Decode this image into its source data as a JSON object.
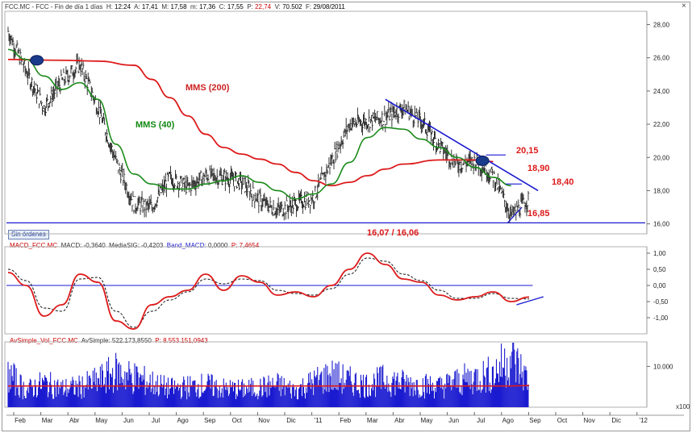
{
  "header": {
    "symbol_info": "FCC.MC - FCC - Fin de día 1 días",
    "h_label": "H:",
    "h_value": "12:24",
    "a_label": "A:",
    "a_value": "17,41",
    "m_label": "M:",
    "m_value": "17,58",
    "mn_label": "m:",
    "mn_value": "17,36",
    "c_label": "C:",
    "c_value": "17,55",
    "p_label": "P:",
    "p_value": "22,74",
    "v_label": "V:",
    "v_value": "70.502",
    "f_label": "F:",
    "f_value": "29/08/2011"
  },
  "badge_label": "Sin órdenes",
  "macd_header": {
    "name": "MACD_FCC.MC",
    "macd_label": "MACD:",
    "macd_value": "-0,3640",
    "sig_label": "MediaSIG:",
    "sig_value": "-0,4203",
    "band_label": "Band_MACD:",
    "band_value": "0,0000",
    "p_label": "P:",
    "p_value": "7,4654"
  },
  "vol_header": {
    "name": "AvSimple_Vol_FCC.MC",
    "av_label": "AvSimple:",
    "av_value": "522.173,8550",
    "p_label": "P:",
    "p_value": "8.553.151,0943"
  },
  "vol_corner": "x100",
  "colors": {
    "price": "#222222",
    "mms200": "#dd1a1a",
    "mms40": "#1a8a1a",
    "trend": "#1a1ad0",
    "macd": "#dd1a1a",
    "volume": "#1a1ad0",
    "header_red": "#cc0000"
  },
  "chart_data": [
    {
      "type": "line",
      "panel": "price",
      "y_ticks": [
        "28,00",
        "26,00",
        "24,00",
        "22,00",
        "20,00",
        "18,00",
        "16,00"
      ],
      "ylim": [
        15.4,
        28.8
      ],
      "x_tick_labels": [
        "Feb",
        "Mar",
        "Abr",
        "May",
        "Jun",
        "Jul",
        "Ago",
        "Sep",
        "Oct",
        "Nov",
        "Dic",
        "'11",
        "Feb",
        "Mar",
        "Abr",
        "May",
        "Jun",
        "Jul",
        "Ago",
        "Sep",
        "Oct",
        "Nov",
        "Dic",
        "'12"
      ],
      "series": [
        {
          "name": "MMS (200)",
          "style": "red smooth line",
          "points": [
            [
              0,
              25.9
            ],
            [
              3,
              25.85
            ],
            [
              5,
              25.8
            ],
            [
              7,
              25.55
            ],
            [
              8,
              24.7
            ],
            [
              9,
              23.6
            ],
            [
              10,
              22.5
            ],
            [
              11,
              21.4
            ],
            [
              12,
              20.6
            ],
            [
              13,
              20.2
            ],
            [
              14,
              19.9
            ],
            [
              15,
              19.6
            ],
            [
              16,
              19.1
            ],
            [
              17,
              18.6
            ],
            [
              18,
              18.3
            ],
            [
              19,
              18.5
            ],
            [
              20,
              18.9
            ],
            [
              21,
              19.3
            ],
            [
              22,
              19.6
            ],
            [
              24,
              19.85
            ],
            [
              26,
              19.85
            ],
            [
              27,
              19.75
            ]
          ]
        },
        {
          "name": "MMS (40)",
          "style": "green smooth line",
          "points": [
            [
              0,
              26.5
            ],
            [
              1,
              25.9
            ],
            [
              2,
              24.9
            ],
            [
              3,
              24.1
            ],
            [
              4,
              24.5
            ],
            [
              5,
              23.5
            ],
            [
              6,
              20.8
            ],
            [
              7,
              19.0
            ],
            [
              8,
              18.4
            ],
            [
              9,
              18.1
            ],
            [
              10,
              18.1
            ],
            [
              11,
              18.4
            ],
            [
              12,
              18.6
            ],
            [
              13,
              18.9
            ],
            [
              14,
              18.5
            ],
            [
              15,
              18.0
            ],
            [
              16,
              17.5
            ],
            [
              17,
              17.8
            ],
            [
              18,
              18.4
            ],
            [
              19,
              19.7
            ],
            [
              20,
              21.2
            ],
            [
              21,
              21.8
            ],
            [
              22,
              21.7
            ],
            [
              23,
              21.1
            ],
            [
              24,
              20.6
            ],
            [
              25,
              20.0
            ],
            [
              26,
              19.4
            ],
            [
              27,
              18.8
            ],
            [
              28,
              18.3
            ]
          ]
        },
        {
          "name": "Price",
          "style": "black OHLC bars",
          "points": [
            [
              0,
              27.6
            ],
            [
              1,
              25.2
            ],
            [
              2,
              23.0
            ],
            [
              3,
              24.6
            ],
            [
              4,
              25.6
            ],
            [
              5,
              23.0
            ],
            [
              6,
              19.8
            ],
            [
              7,
              17.2
            ],
            [
              8,
              17.0
            ],
            [
              9,
              18.8
            ],
            [
              10,
              18.2
            ],
            [
              11,
              18.9
            ],
            [
              12,
              18.8
            ],
            [
              13,
              18.5
            ],
            [
              14,
              17.4
            ],
            [
              15,
              16.8
            ],
            [
              16,
              17.2
            ],
            [
              17,
              17.6
            ],
            [
              18,
              19.8
            ],
            [
              19,
              22.0
            ],
            [
              20,
              22.2
            ],
            [
              21,
              22.4
            ],
            [
              22,
              23.0
            ],
            [
              23,
              22.2
            ],
            [
              24,
              20.7
            ],
            [
              25,
              19.6
            ],
            [
              26,
              19.8
            ],
            [
              27,
              18.9
            ],
            [
              28,
              16.5
            ],
            [
              29,
              17.5
            ]
          ]
        }
      ],
      "annotations": [
        {
          "text": "MMS (200)",
          "color": "#cc2222"
        },
        {
          "text": "MMS (40)",
          "color": "#118811"
        },
        {
          "text": "20,15",
          "color": "#dd1a1a",
          "value": 20.15
        },
        {
          "text": "18,90",
          "color": "#dd1a1a",
          "value": 18.9
        },
        {
          "text": "18,40",
          "color": "#dd1a1a",
          "value": 18.4
        },
        {
          "text": "16,85",
          "color": "#dd1a1a",
          "value": 16.85
        },
        {
          "text": "16,07 / 16,06",
          "color": "#dd1a1a",
          "value": 16.06
        }
      ],
      "support_level": 16.06,
      "downtrend_line": [
        [
          21.0,
          23.5
        ],
        [
          29.5,
          18.0
        ]
      ]
    },
    {
      "type": "line",
      "panel": "macd",
      "y_ticks": [
        "1,00",
        "0,50",
        "0,00",
        "-0,50",
        "-1,00"
      ],
      "ylim": [
        -1.5,
        1.2
      ],
      "zero_line": 0.0,
      "series": [
        {
          "name": "MACD",
          "style": "red solid",
          "points": [
            [
              0,
              0.4
            ],
            [
              1,
              0.0
            ],
            [
              2,
              -0.95
            ],
            [
              3,
              -0.6
            ],
            [
              4,
              0.35
            ],
            [
              5,
              0.1
            ],
            [
              6,
              -1.1
            ],
            [
              7,
              -1.35
            ],
            [
              8,
              -0.6
            ],
            [
              9,
              -0.35
            ],
            [
              10,
              -0.15
            ],
            [
              11,
              0.35
            ],
            [
              12,
              -0.15
            ],
            [
              13,
              0.3
            ],
            [
              14,
              0.1
            ],
            [
              15,
              -0.3
            ],
            [
              16,
              -0.2
            ],
            [
              17,
              -0.35
            ],
            [
              18,
              0.0
            ],
            [
              19,
              0.5
            ],
            [
              20,
              1.0
            ],
            [
              21,
              0.65
            ],
            [
              22,
              0.2
            ],
            [
              23,
              0.1
            ],
            [
              24,
              -0.3
            ],
            [
              25,
              -0.45
            ],
            [
              26,
              -0.35
            ],
            [
              27,
              -0.2
            ],
            [
              28,
              -0.5
            ],
            [
              29,
              -0.36
            ]
          ]
        },
        {
          "name": "MediaSIG",
          "style": "black dashed",
          "points": [
            [
              0,
              0.5
            ],
            [
              1,
              0.15
            ],
            [
              2,
              -0.7
            ],
            [
              3,
              -0.8
            ],
            [
              4,
              0.2
            ],
            [
              5,
              0.25
            ],
            [
              6,
              -0.8
            ],
            [
              7,
              -1.3
            ],
            [
              8,
              -0.8
            ],
            [
              9,
              -0.45
            ],
            [
              10,
              -0.2
            ],
            [
              11,
              0.2
            ],
            [
              12,
              0.05
            ],
            [
              13,
              0.2
            ],
            [
              14,
              0.15
            ],
            [
              15,
              -0.15
            ],
            [
              16,
              -0.25
            ],
            [
              17,
              -0.3
            ],
            [
              18,
              -0.1
            ],
            [
              19,
              0.35
            ],
            [
              20,
              0.85
            ],
            [
              21,
              0.75
            ],
            [
              22,
              0.35
            ],
            [
              23,
              0.15
            ],
            [
              24,
              -0.15
            ],
            [
              25,
              -0.4
            ],
            [
              26,
              -0.4
            ],
            [
              27,
              -0.25
            ],
            [
              28,
              -0.4
            ],
            [
              29,
              -0.42
            ]
          ]
        }
      ],
      "divergence_line": [
        [
          28.3,
          -0.6
        ],
        [
          29.8,
          -0.35
        ]
      ]
    },
    {
      "type": "bar",
      "panel": "volume",
      "y_ticks": [
        "10.000"
      ],
      "ylim": [
        0,
        16000
      ],
      "series": [
        {
          "name": "Volume",
          "style": "blue bars",
          "values": [
            9000,
            4500,
            6500,
            5000,
            5500,
            7000,
            9500,
            8000,
            6500,
            5000,
            5500,
            6000,
            5000,
            4800,
            5200,
            6000,
            4500,
            6800,
            8500,
            7000,
            6000,
            7500,
            6500,
            6000,
            5500,
            7000,
            8000,
            9000,
            13500,
            7000
          ]
        },
        {
          "name": "AvSimple",
          "style": "red line",
          "values": [
            5200,
            5200,
            5200,
            5200,
            5200,
            5200,
            5200,
            5200,
            5200,
            5200,
            5200,
            5200,
            5200,
            5200,
            5200,
            5200,
            5200,
            5200,
            5200,
            5200,
            5200,
            5200,
            5200,
            5200,
            5200,
            5200,
            5200,
            5200,
            5200,
            5300
          ]
        }
      ]
    }
  ]
}
